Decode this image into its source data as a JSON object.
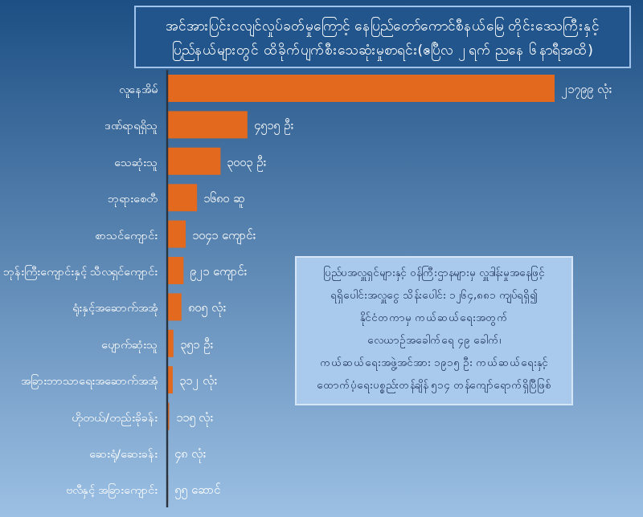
{
  "chart_data": {
    "type": "bar",
    "orientation": "horizontal",
    "title": "အင်အားပြင်းငလျင်လှုပ်ခတ်မှုကြောင့် နေပြည်တော်ကောင်စီနယ်မြေ တိုင်းဒေသကြီးနှင့်\nပြည်နယ်များတွင် ထိခိုက်ပျက်စီးသေဆုံးမှုစာရင်း(ဧပြီလ ၂ ရက် ညနေ ၆ နာရီအထိ)",
    "categories": [
      "လူနေအိမ်",
      "ဒဏ်ရာရရှိသူ",
      "သေဆုံးသူ",
      "ဘုရားစေတီ",
      "စာသင်ကျောင်း",
      "ဘုန်းကြီးကျောင်းနှင့် သီလရှင်ကျောင်း",
      "ရုံးနှင့်အဆောက်အအုံ",
      "ပျောက်ဆုံးသူ",
      "အခြားဘာသာရေးအဆောက်အအုံ",
      "ဟိုတယ်/တည်းခိုခန်း",
      "ဆေးရုံ/ဆေးခန်း",
      "ဗလီနှင့် အခြားကျောင်း"
    ],
    "values": [
      21799,
      4515,
      3003,
      1680,
      1041,
      921,
      805,
      351,
      312,
      115,
      48,
      55
    ],
    "value_labels": [
      "၂၁၇၉၉ လုံး",
      "၄၅၁၅ ဦး",
      "၃၀၀၃ ဦး",
      "၁၆၈၀ ဆူ",
      "၁၀၄၁ ကျောင်း",
      "၉၂၁ ကျောင်း",
      "၈၀၅ လုံး",
      "၃၅၁ ဦး",
      "၃၁၂ လုံး",
      "၁၁၅ လုံး",
      "၄၈ လုံး",
      "၅၅ ဆောင်"
    ],
    "color": "#e2691e",
    "annotations": [
      "ပြည်ပအလှူရှင်များနှင့် ဝန်ကြီးဌာနများမှ လှူဒါန်းမှုအနေဖြင့်\nရရှိပေါင်းအလှူငွေ သိန်းပေါင်း ၁၂၆၄,၈၈၁ ကျပ်ရရှိ၍\nနိုင်ငံတကာမှ ကယ်ဆယ်ရေးအတွက်\nလေယာဉ်အခေါက်ရေ ၄၉ ခေါက်၊\nကယ်ဆယ်ရေးအဖွဲ့အင်အား ၁၉၁၅ ဦး ကယ်ဆယ်ရေးနှင့်\nထောက်ပံ့ရေးပစ္စည်းတန်ချိန် ၅၁၄ တန်ကျော်ရောက်ရှိပြီဖြစ်"
    ]
  }
}
